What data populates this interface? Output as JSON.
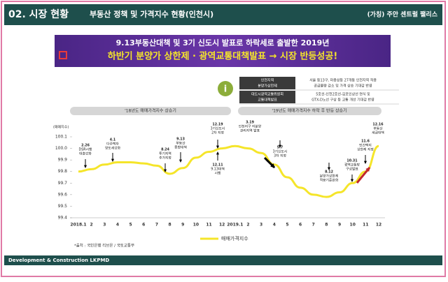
{
  "header": {
    "section": "02. 시장 현황",
    "subtitle": "부동산 정책 및 가격지수 현황(인천시)",
    "project": "(가칭) 주안 센트럴 팰리스"
  },
  "banner": {
    "line1": "9.13부동산대책 및 3기 신도시 발표로 하락세로 출발한 2019년",
    "line2": "하반기 분양가 상한제 · 광역교통대책발표 → 시장 반등성공!"
  },
  "info": {
    "rows": [
      [
        "인천지역",
        "분양가상한제",
        "서울 등13구, 마용성등 27개동 인천지역 적용",
        "공급물량 감소 및 가격 상승 기대감 반영"
      ],
      [
        "대도시광역교통위원회",
        "교통대책발표",
        "5호선-인천2호선-김포인상선 연식 및",
        "GTX-D노선 구상 등 교통 개선 기대감 반영"
      ]
    ]
  },
  "chart_data": {
    "type": "line",
    "periods": [
      "'18년도 매매가격지수 상승기",
      "'19년도 매매가격지수 하락 후 반등 상승기"
    ],
    "y_label": "(매매지수)",
    "categories": [
      "2018.1",
      "2",
      "3",
      "4",
      "5",
      "6",
      "7",
      "8",
      "9",
      "10",
      "11",
      "12",
      "2019.1",
      "2",
      "3",
      "4",
      "5",
      "6",
      "7",
      "8",
      "9",
      "10",
      "11",
      "12"
    ],
    "series": [
      {
        "name": "매매가격지수",
        "color": "#f5e52a",
        "values": [
          99.8,
          99.82,
          99.86,
          99.88,
          99.88,
          99.87,
          99.85,
          99.78,
          99.83,
          99.92,
          99.97,
          100.0,
          100.02,
          100.0,
          99.96,
          99.86,
          99.75,
          99.66,
          99.6,
          99.58,
          99.62,
          99.7,
          99.8,
          100.02
        ]
      }
    ],
    "ylim": [
      99.4,
      100.1
    ],
    "yticks": [
      99.4,
      99.5,
      99.6,
      99.7,
      99.8,
      99.9,
      {
        "value": 100,
        "label": "100.0"
      },
      100.1
    ],
    "annotations": [
      [
        "2.26",
        "DSR시행",
        "대출강화"
      ],
      [
        "4.1",
        "다주택자",
        "양도세강화"
      ],
      [
        "8.24",
        "투기지역",
        "추가지정"
      ],
      [
        "9.13",
        "부동산",
        "종합대책"
      ],
      [
        "12.19",
        "3기신도시",
        "2차 지정"
      ],
      [
        "12.11",
        "9.13대책",
        "시행"
      ],
      [
        "3.19",
        "인천지구 미분양",
        "관리지역 발표"
      ],
      [
        "5.7",
        "3기신도시",
        "3차 지정"
      ],
      [
        "8.12",
        "분양가상한제",
        "적용기준완화"
      ],
      [
        "10.31",
        "광역교통망",
        "구상발표"
      ],
      [
        "11.6",
        "민간택지",
        "상한제 지정"
      ],
      [
        "12.16",
        "부동산",
        "세금대책"
      ]
    ],
    "source": "*출처 : 국민은행 리브온 / 국토교통부"
  },
  "footer": "Development & Construction LKPMD"
}
